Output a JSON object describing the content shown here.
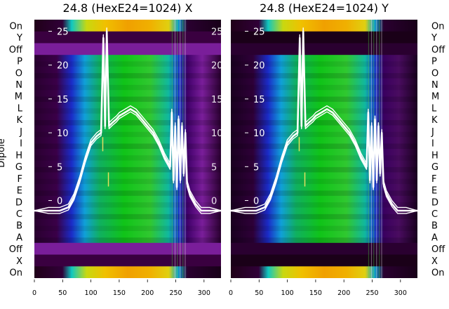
{
  "chart_data": [
    {
      "type": "heatmap",
      "title": "24.8 (HexE24=1024) X",
      "ylabel": "Dipole",
      "xlim": [
        0,
        330
      ],
      "x_ticks": [
        0,
        50,
        100,
        150,
        200,
        250,
        300
      ],
      "row_labels": [
        "On",
        "Y",
        "Off",
        "P",
        "O",
        "N",
        "M",
        "L",
        "K",
        "J",
        "I",
        "H",
        "G",
        "F",
        "E",
        "D",
        "C",
        "B",
        "A",
        "Off",
        "X",
        "On"
      ],
      "overlay_ticks": [
        25,
        20,
        15,
        10,
        5,
        0
      ],
      "overlay_ylim": [
        -1.5,
        26.5
      ],
      "overlay_series": {
        "x": [
          0,
          25,
          45,
          60,
          70,
          80,
          90,
          100,
          110,
          118,
          122,
          125,
          128,
          132,
          138,
          145,
          150,
          160,
          170,
          180,
          190,
          200,
          210,
          220,
          230,
          240,
          243,
          246,
          249,
          252,
          255,
          258,
          261,
          264,
          267,
          270,
          275,
          285,
          295,
          310,
          330
        ],
        "y": [
          -1.5,
          -1.5,
          -1.5,
          -1,
          0.5,
          3,
          6,
          8.5,
          9.5,
          10,
          24,
          11,
          25,
          11,
          11.5,
          12,
          12.5,
          13,
          13.5,
          13,
          12,
          11,
          10,
          8.5,
          6.5,
          5,
          13,
          3,
          11,
          2,
          12,
          3,
          11,
          4,
          10,
          2.5,
          1,
          -0.5,
          -1.5,
          -1.5,
          -1.5
        ]
      }
    },
    {
      "type": "heatmap",
      "title": "24.8 (HexE24=1024) Y",
      "ylabel": "Dipole",
      "xlim": [
        0,
        330
      ],
      "x_ticks": [
        0,
        50,
        100,
        150,
        200,
        250,
        300
      ],
      "row_labels": [
        "On",
        "Y",
        "Off",
        "P",
        "O",
        "N",
        "M",
        "L",
        "K",
        "J",
        "I",
        "H",
        "G",
        "F",
        "E",
        "D",
        "C",
        "B",
        "A",
        "Off",
        "X",
        "On"
      ],
      "overlay_ticks": [
        25,
        20,
        15,
        10,
        5,
        0
      ],
      "overlay_ylim": [
        -1.5,
        26.5
      ],
      "overlay_series": {
        "x": [
          0,
          25,
          45,
          60,
          70,
          80,
          90,
          100,
          110,
          118,
          122,
          125,
          128,
          132,
          138,
          145,
          150,
          160,
          170,
          180,
          190,
          200,
          210,
          220,
          230,
          240,
          243,
          246,
          249,
          252,
          255,
          258,
          261,
          264,
          267,
          270,
          275,
          285,
          295,
          310,
          330
        ],
        "y": [
          -1.5,
          -1.5,
          -1.5,
          -1,
          0.5,
          3,
          6,
          8.5,
          9.5,
          10,
          24,
          11,
          25,
          11,
          11.5,
          12,
          12.5,
          13,
          13.5,
          13,
          12,
          11,
          10,
          8.5,
          6.5,
          5,
          13,
          3,
          11,
          2,
          12,
          3,
          11,
          4,
          10,
          2.5,
          1,
          -0.5,
          -1.5,
          -1.5,
          -1.5
        ]
      }
    }
  ]
}
